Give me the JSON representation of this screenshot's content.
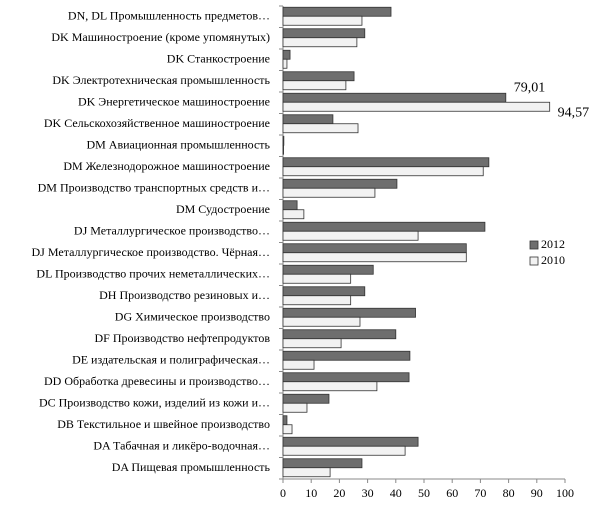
{
  "chart_data": {
    "type": "hbar",
    "categories": [
      "DN, DL Промышленность предметов…",
      "DK Машиностроение (кроме упомянутых)",
      "DK Станкостроение",
      "DK Электротехническая  промышленность",
      "DK Энергетическое машиностроение",
      "DK Сельскохозяйственное  машиностроение",
      "DM Авиационная промышленность",
      "DM Железнодорожное машиностроение",
      "DM Производство транспортных  средств и…",
      "DM Судостроение",
      "DJ Металлургическое производство…",
      "DJ Металлургическое производство. Чёрная…",
      "DL Производство прочих неметаллических…",
      "DH Производство резиновых и…",
      "DG Химическое производство",
      "DF Производство  нефтепродуктов",
      "DE издательская и полиграфическая…",
      "DD Обработка древесины и производство…",
      "DC Производство кожи, изделий  из кожи и…",
      "DB Текстильное и швейное производство",
      "DA Табачная и ликёро-водочная…",
      "DA Пищевая промышленность"
    ],
    "series": [
      {
        "name": "2012",
        "color": "#6e6e6e",
        "values": [
          38.3,
          29,
          2.5,
          25.2,
          79.01,
          17.7,
          0.3,
          73,
          40.4,
          5,
          71.6,
          65,
          32,
          29,
          47,
          40,
          45,
          44.7,
          16.3,
          1.4,
          47.9,
          28
        ],
        "value_labels": [
          null,
          null,
          null,
          null,
          "79,01",
          null,
          null,
          null,
          null,
          null,
          null,
          null,
          null,
          null,
          null,
          null,
          null,
          null,
          null,
          null,
          null,
          null
        ]
      },
      {
        "name": "2010",
        "color": "#f2f2f2",
        "values": [
          28,
          26.2,
          1.4,
          22.3,
          94.57,
          26.6,
          0.2,
          71,
          32.6,
          7.4,
          47.9,
          65,
          24,
          24,
          27.3,
          20.6,
          11,
          33.3,
          8.5,
          3.2,
          43.3,
          16.7
        ],
        "value_labels": [
          null,
          null,
          null,
          null,
          "94,57",
          null,
          null,
          null,
          null,
          null,
          null,
          null,
          null,
          null,
          null,
          null,
          null,
          null,
          null,
          null,
          null,
          null
        ]
      }
    ],
    "xlim": [
      0,
      100
    ],
    "xticks": [
      0,
      10,
      20,
      30,
      40,
      50,
      60,
      70,
      80,
      90,
      100
    ],
    "legend": "right"
  }
}
